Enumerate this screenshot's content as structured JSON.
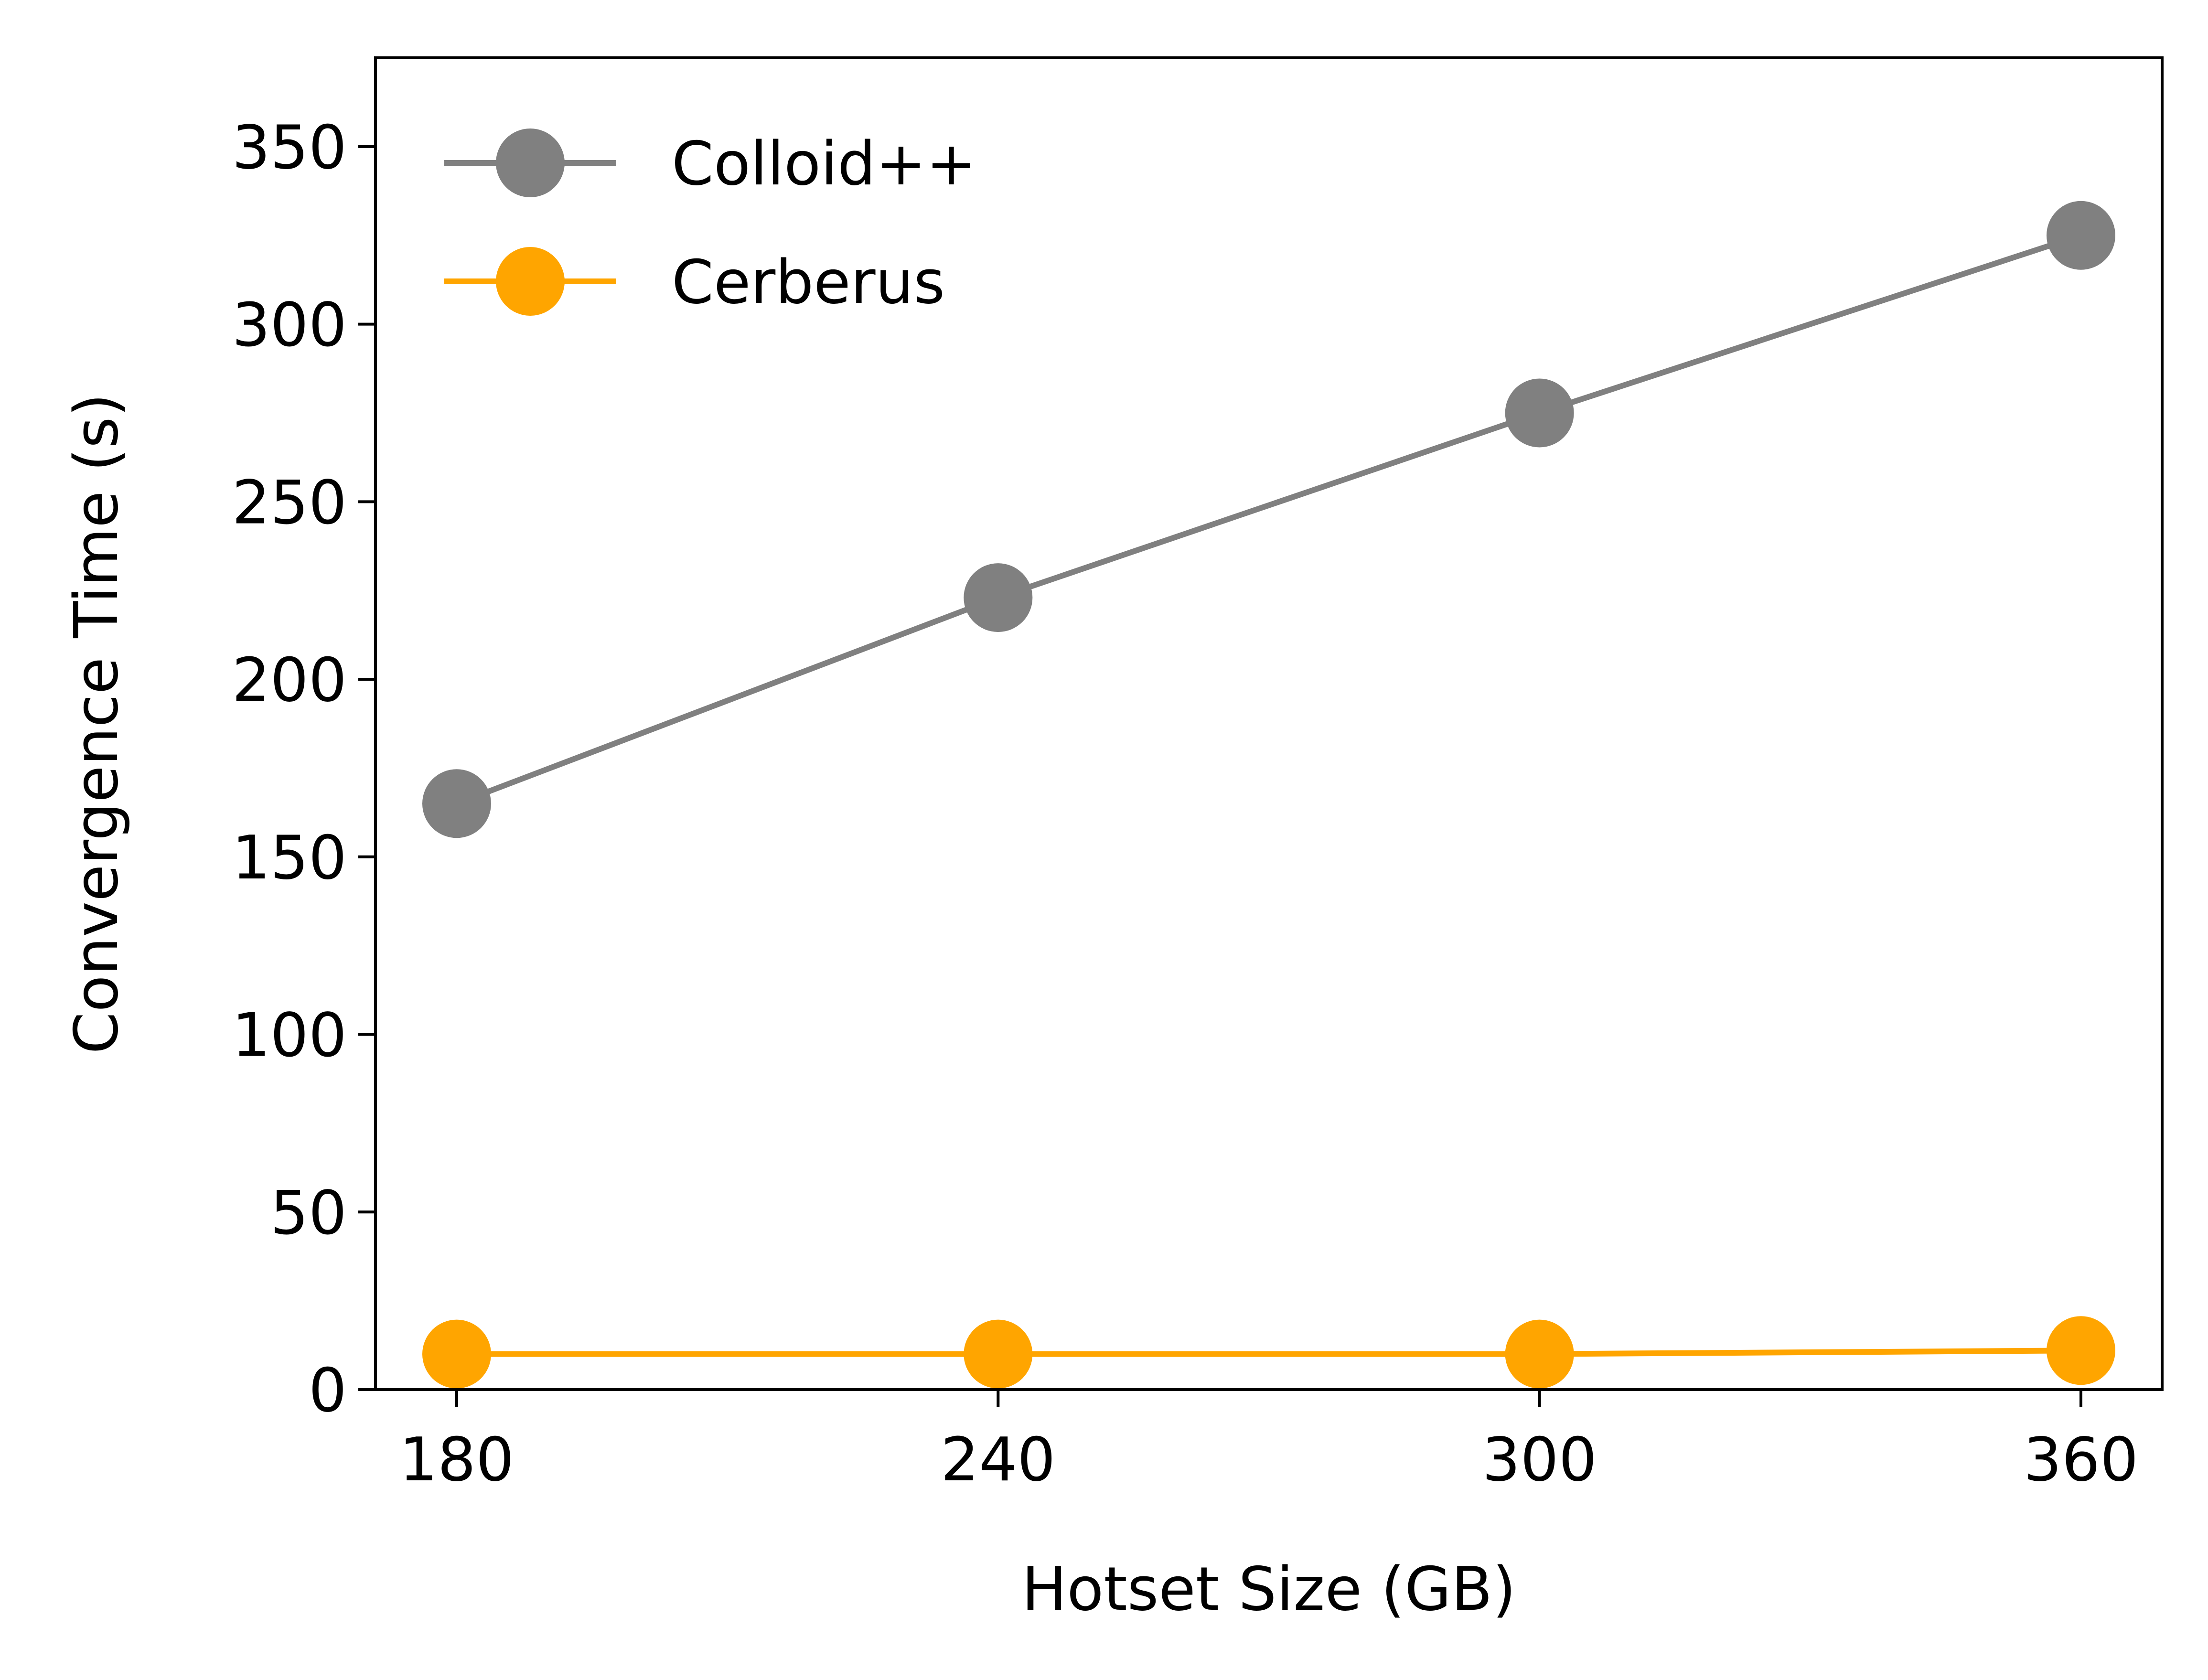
{
  "chart_data": {
    "type": "line",
    "title": "",
    "xlabel": "Hotset Size (GB)",
    "ylabel": "Convergence Time (s)",
    "x": [
      180,
      240,
      300,
      360
    ],
    "xticks": [
      "180",
      "240",
      "300",
      "360"
    ],
    "xlim": [
      171,
      369
    ],
    "ylim": [
      0,
      375
    ],
    "yticks": [
      "0",
      "50",
      "100",
      "150",
      "200",
      "250",
      "300",
      "350"
    ],
    "grid": false,
    "legend": "upper-left",
    "series": [
      {
        "name": "Colloid++",
        "color": "#808080",
        "values": [
          165,
          223,
          275,
          325
        ]
      },
      {
        "name": "Cerberus",
        "color": "#ffa500",
        "values": [
          10,
          10,
          10,
          11
        ]
      }
    ]
  }
}
